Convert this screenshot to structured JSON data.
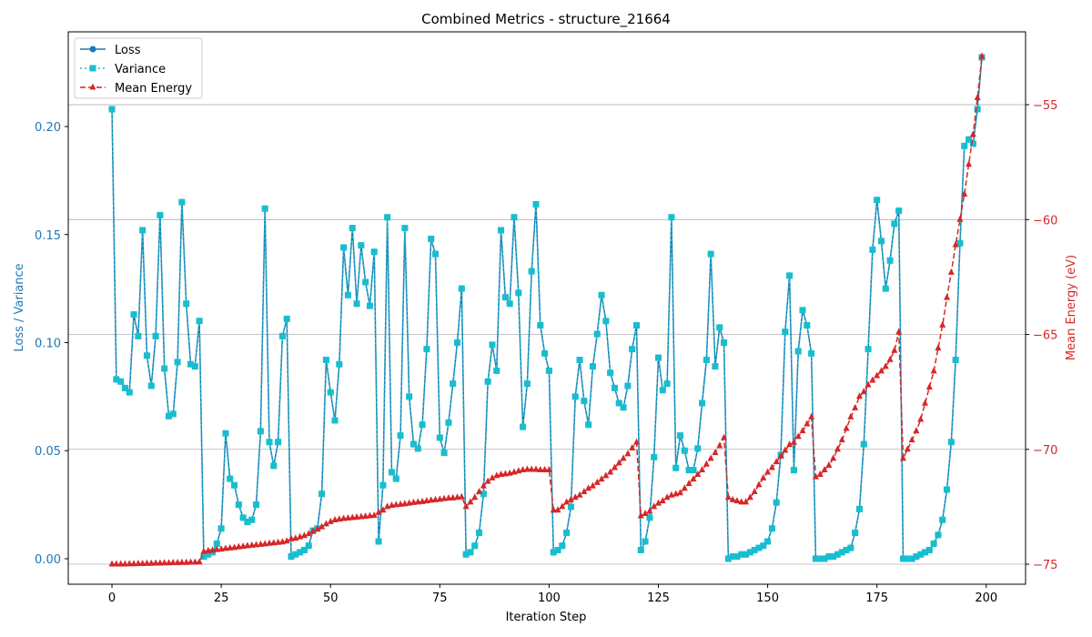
{
  "chart_data": {
    "type": "line",
    "title": "Combined Metrics - structure_21664",
    "xlabel": "Iteration Step",
    "ylabel": "Loss / Variance",
    "y2label": "Mean Energy (eV)",
    "legend": "upper left",
    "grid": true,
    "xlim": [
      -10,
      209
    ],
    "ylim": [
      -0.0118,
      0.2438
    ],
    "y2lim": [
      -75.87,
      -51.83
    ],
    "xticks": [
      0,
      25,
      50,
      75,
      100,
      125,
      150,
      175,
      200
    ],
    "yticks": [
      {
        "value": 0,
        "label": "0.00"
      },
      {
        "value": 0.05,
        "label": "0.05"
      },
      {
        "value": 0.1,
        "label": "0.10"
      },
      {
        "value": 0.15,
        "label": "0.15"
      },
      {
        "value": 0.2,
        "label": "0.20"
      }
    ],
    "y2ticks": [
      {
        "value": -75,
        "label": "−75"
      },
      {
        "value": -70,
        "label": "−70"
      },
      {
        "value": -65,
        "label": "−65"
      },
      {
        "value": -60,
        "label": "−60"
      },
      {
        "value": -55,
        "label": "−55"
      }
    ],
    "x": [
      0,
      1,
      2,
      3,
      4,
      5,
      6,
      7,
      8,
      9,
      10,
      11,
      12,
      13,
      14,
      15,
      16,
      17,
      18,
      19,
      20,
      21,
      22,
      23,
      24,
      25,
      26,
      27,
      28,
      29,
      30,
      31,
      32,
      33,
      34,
      35,
      36,
      37,
      38,
      39,
      40,
      41,
      42,
      43,
      44,
      45,
      46,
      47,
      48,
      49,
      50,
      51,
      52,
      53,
      54,
      55,
      56,
      57,
      58,
      59,
      60,
      61,
      62,
      63,
      64,
      65,
      66,
      67,
      68,
      69,
      70,
      71,
      72,
      73,
      74,
      75,
      76,
      77,
      78,
      79,
      80,
      81,
      82,
      83,
      84,
      85,
      86,
      87,
      88,
      89,
      90,
      91,
      92,
      93,
      94,
      95,
      96,
      97,
      98,
      99,
      100,
      101,
      102,
      103,
      104,
      105,
      106,
      107,
      108,
      109,
      110,
      111,
      112,
      113,
      114,
      115,
      116,
      117,
      118,
      119,
      120,
      121,
      122,
      123,
      124,
      125,
      126,
      127,
      128,
      129,
      130,
      131,
      132,
      133,
      134,
      135,
      136,
      137,
      138,
      139,
      140,
      141,
      142,
      143,
      144,
      145,
      146,
      147,
      148,
      149,
      150,
      151,
      152,
      153,
      154,
      155,
      156,
      157,
      158,
      159,
      160,
      161,
      162,
      163,
      164,
      165,
      166,
      167,
      168,
      169,
      170,
      171,
      172,
      173,
      174,
      175,
      176,
      177,
      178,
      179,
      180,
      181,
      182,
      183,
      184,
      185,
      186,
      187,
      188,
      189,
      190,
      191,
      192,
      193,
      194,
      195,
      196,
      197,
      198,
      199
    ],
    "series": [
      {
        "name": "Loss",
        "color": "#1f77b4",
        "marker": "circle",
        "dash": "solid",
        "axis": "y",
        "values": [
          0.208,
          0.083,
          0.082,
          0.079,
          0.077,
          0.113,
          0.103,
          0.152,
          0.094,
          0.08,
          0.103,
          0.159,
          0.088,
          0.066,
          0.067,
          0.091,
          0.165,
          0.118,
          0.09,
          0.089,
          0.11,
          0.001,
          0.002,
          0.003,
          0.007,
          0.014,
          0.058,
          0.037,
          0.034,
          0.025,
          0.019,
          0.017,
          0.018,
          0.025,
          0.059,
          0.162,
          0.054,
          0.043,
          0.054,
          0.103,
          0.111,
          0.001,
          0.002,
          0.003,
          0.004,
          0.006,
          0.013,
          0.014,
          0.03,
          0.092,
          0.077,
          0.064,
          0.09,
          0.144,
          0.122,
          0.153,
          0.118,
          0.145,
          0.128,
          0.117,
          0.142,
          0.008,
          0.034,
          0.158,
          0.04,
          0.037,
          0.057,
          0.153,
          0.075,
          0.053,
          0.051,
          0.062,
          0.097,
          0.148,
          0.141,
          0.056,
          0.049,
          0.063,
          0.081,
          0.1,
          0.125,
          0.002,
          0.003,
          0.006,
          0.012,
          0.03,
          0.082,
          0.099,
          0.087,
          0.152,
          0.121,
          0.118,
          0.158,
          0.123,
          0.061,
          0.081,
          0.133,
          0.164,
          0.108,
          0.095,
          0.087,
          0.003,
          0.004,
          0.006,
          0.012,
          0.024,
          0.075,
          0.092,
          0.073,
          0.062,
          0.089,
          0.104,
          0.122,
          0.11,
          0.086,
          0.079,
          0.072,
          0.07,
          0.08,
          0.097,
          0.108,
          0.004,
          0.008,
          0.019,
          0.047,
          0.093,
          0.078,
          0.081,
          0.158,
          0.042,
          0.057,
          0.05,
          0.041,
          0.041,
          0.051,
          0.072,
          0.092,
          0.141,
          0.089,
          0.107,
          0.1,
          0.0,
          0.001,
          0.001,
          0.002,
          0.002,
          0.003,
          0.004,
          0.005,
          0.006,
          0.008,
          0.014,
          0.026,
          0.048,
          0.105,
          0.131,
          0.041,
          0.096,
          0.115,
          0.108,
          0.095,
          0.0,
          0.0,
          0.0,
          0.001,
          0.001,
          0.002,
          0.003,
          0.004,
          0.005,
          0.012,
          0.023,
          0.053,
          0.097,
          0.143,
          0.166,
          0.147,
          0.125,
          0.138,
          0.155,
          0.161,
          0.0,
          0.0,
          0.0,
          0.001,
          0.002,
          0.003,
          0.004,
          0.007,
          0.011,
          0.018,
          0.032,
          0.054,
          0.092,
          0.146,
          0.191,
          0.194,
          0.192,
          0.208,
          0.232
        ]
      },
      {
        "name": "Variance",
        "color": "#17becf",
        "marker": "square",
        "dash": "dotted",
        "axis": "y",
        "values": [
          0.208,
          0.083,
          0.082,
          0.079,
          0.077,
          0.113,
          0.103,
          0.152,
          0.094,
          0.08,
          0.103,
          0.159,
          0.088,
          0.066,
          0.067,
          0.091,
          0.165,
          0.118,
          0.09,
          0.089,
          0.11,
          0.001,
          0.002,
          0.003,
          0.007,
          0.014,
          0.058,
          0.037,
          0.034,
          0.025,
          0.019,
          0.017,
          0.018,
          0.025,
          0.059,
          0.162,
          0.054,
          0.043,
          0.054,
          0.103,
          0.111,
          0.001,
          0.002,
          0.003,
          0.004,
          0.006,
          0.013,
          0.014,
          0.03,
          0.092,
          0.077,
          0.064,
          0.09,
          0.144,
          0.122,
          0.153,
          0.118,
          0.145,
          0.128,
          0.117,
          0.142,
          0.008,
          0.034,
          0.158,
          0.04,
          0.037,
          0.057,
          0.153,
          0.075,
          0.053,
          0.051,
          0.062,
          0.097,
          0.148,
          0.141,
          0.056,
          0.049,
          0.063,
          0.081,
          0.1,
          0.125,
          0.002,
          0.003,
          0.006,
          0.012,
          0.03,
          0.082,
          0.099,
          0.087,
          0.152,
          0.121,
          0.118,
          0.158,
          0.123,
          0.061,
          0.081,
          0.133,
          0.164,
          0.108,
          0.095,
          0.087,
          0.003,
          0.004,
          0.006,
          0.012,
          0.024,
          0.075,
          0.092,
          0.073,
          0.062,
          0.089,
          0.104,
          0.122,
          0.11,
          0.086,
          0.079,
          0.072,
          0.07,
          0.08,
          0.097,
          0.108,
          0.004,
          0.008,
          0.019,
          0.047,
          0.093,
          0.078,
          0.081,
          0.158,
          0.042,
          0.057,
          0.05,
          0.041,
          0.041,
          0.051,
          0.072,
          0.092,
          0.141,
          0.089,
          0.107,
          0.1,
          0.0,
          0.001,
          0.001,
          0.002,
          0.002,
          0.003,
          0.004,
          0.005,
          0.006,
          0.008,
          0.014,
          0.026,
          0.048,
          0.105,
          0.131,
          0.041,
          0.096,
          0.115,
          0.108,
          0.095,
          0.0,
          0.0,
          0.0,
          0.001,
          0.001,
          0.002,
          0.003,
          0.004,
          0.005,
          0.012,
          0.023,
          0.053,
          0.097,
          0.143,
          0.166,
          0.147,
          0.125,
          0.138,
          0.155,
          0.161,
          0.0,
          0.0,
          0.0,
          0.001,
          0.002,
          0.003,
          0.004,
          0.007,
          0.011,
          0.018,
          0.032,
          0.054,
          0.092,
          0.146,
          0.191,
          0.194,
          0.192,
          0.208,
          0.232
        ]
      },
      {
        "name": "Mean Energy",
        "color": "#d62728",
        "marker": "triangle",
        "dash": "dashed",
        "axis": "y2",
        "values": [
          -75.0,
          -75.0,
          -75.0,
          -75.0,
          -74.99,
          -74.99,
          -74.98,
          -74.98,
          -74.97,
          -74.97,
          -74.96,
          -74.96,
          -74.95,
          -74.95,
          -74.94,
          -74.94,
          -74.93,
          -74.93,
          -74.92,
          -74.92,
          -74.91,
          -74.45,
          -74.42,
          -74.4,
          -74.37,
          -74.35,
          -74.32,
          -74.3,
          -74.28,
          -74.25,
          -74.23,
          -74.2,
          -74.18,
          -74.16,
          -74.14,
          -74.12,
          -74.1,
          -74.08,
          -74.06,
          -74.04,
          -74.0,
          -73.9,
          -73.88,
          -73.82,
          -73.76,
          -73.68,
          -73.58,
          -73.48,
          -73.38,
          -73.25,
          -73.15,
          -73.08,
          -73.05,
          -73.02,
          -73.0,
          -72.98,
          -72.96,
          -72.94,
          -72.92,
          -72.9,
          -72.88,
          -72.75,
          -72.65,
          -72.5,
          -72.45,
          -72.42,
          -72.4,
          -72.38,
          -72.35,
          -72.32,
          -72.3,
          -72.28,
          -72.25,
          -72.22,
          -72.2,
          -72.18,
          -72.15,
          -72.13,
          -72.12,
          -72.1,
          -72.08,
          -72.5,
          -72.3,
          -72.1,
          -71.85,
          -71.6,
          -71.4,
          -71.25,
          -71.15,
          -71.1,
          -71.08,
          -71.05,
          -71.0,
          -70.95,
          -70.9,
          -70.88,
          -70.88,
          -70.88,
          -70.9,
          -70.9,
          -70.9,
          -72.65,
          -72.65,
          -72.5,
          -72.3,
          -72.2,
          -72.1,
          -72.0,
          -71.85,
          -71.7,
          -71.6,
          -71.45,
          -71.3,
          -71.15,
          -71.0,
          -70.8,
          -70.6,
          -70.4,
          -70.2,
          -69.95,
          -69.7,
          -72.9,
          -72.8,
          -72.7,
          -72.5,
          -72.35,
          -72.25,
          -72.1,
          -72.0,
          -71.95,
          -71.9,
          -71.7,
          -71.5,
          -71.3,
          -71.1,
          -70.9,
          -70.65,
          -70.4,
          -70.15,
          -69.85,
          -69.5,
          -72.1,
          -72.2,
          -72.25,
          -72.3,
          -72.3,
          -72.1,
          -71.85,
          -71.55,
          -71.25,
          -71.0,
          -70.8,
          -70.55,
          -70.3,
          -70.05,
          -69.8,
          -69.7,
          -69.45,
          -69.2,
          -68.9,
          -68.6,
          -71.2,
          -71.1,
          -70.9,
          -70.7,
          -70.4,
          -70.0,
          -69.6,
          -69.1,
          -68.6,
          -68.2,
          -67.7,
          -67.5,
          -67.2,
          -67.0,
          -66.8,
          -66.6,
          -66.4,
          -66.1,
          -65.7,
          -64.9,
          -70.4,
          -70.0,
          -69.6,
          -69.2,
          -68.7,
          -68.0,
          -67.3,
          -66.6,
          -65.6,
          -64.6,
          -63.4,
          -62.3,
          -61.1,
          -60.0,
          -58.9,
          -57.6,
          -56.3,
          -54.7,
          -52.9
        ]
      }
    ]
  }
}
